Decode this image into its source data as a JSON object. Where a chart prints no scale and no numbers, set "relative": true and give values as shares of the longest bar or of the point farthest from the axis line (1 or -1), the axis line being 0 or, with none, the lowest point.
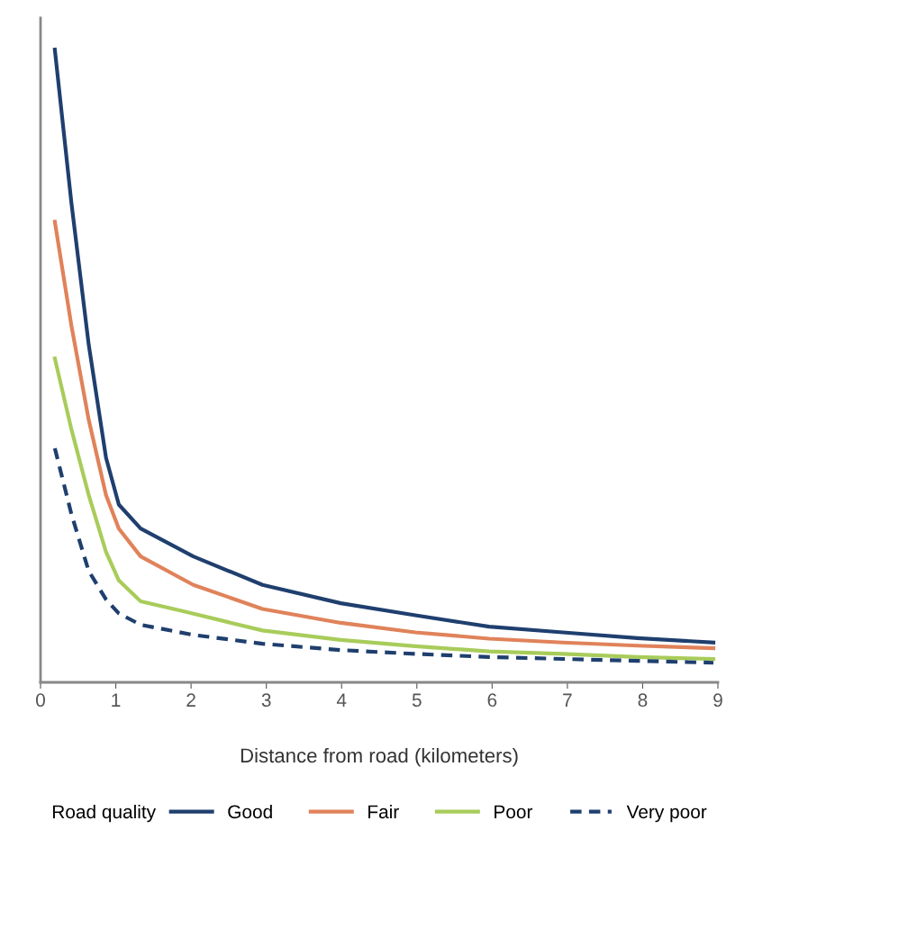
{
  "chart_data": {
    "type": "line",
    "relative": true,
    "xlabel": "Distance from road (kilometers)",
    "legend_title": "Road quality",
    "legend": "bottom",
    "grid": false,
    "xlim": [
      0,
      9
    ],
    "xticks": [
      0,
      1,
      2,
      3,
      4,
      5,
      6,
      7,
      8,
      9
    ],
    "series": [
      {
        "name": "Good",
        "color": "#1f3f6e",
        "line_style": "solid",
        "x": [
          0.19,
          0.41,
          0.64,
          0.87,
          1.04,
          1.33,
          2.03,
          2.95,
          3.99,
          4.98,
          5.96,
          6.94,
          7.93,
          8.94
        ],
        "values": [
          1.0,
          0.758,
          0.534,
          0.355,
          0.281,
          0.243,
          0.199,
          0.154,
          0.125,
          0.106,
          0.088,
          0.079,
          0.07,
          0.063
        ]
      },
      {
        "name": "Fair",
        "color": "#e0825a",
        "line_style": "solid",
        "x": [
          0.19,
          0.41,
          0.64,
          0.87,
          1.04,
          1.33,
          2.03,
          2.95,
          3.99,
          4.98,
          5.96,
          6.94,
          7.93,
          8.94
        ],
        "values": [
          0.728,
          0.564,
          0.415,
          0.296,
          0.243,
          0.199,
          0.154,
          0.116,
          0.094,
          0.079,
          0.069,
          0.063,
          0.058,
          0.054
        ]
      },
      {
        "name": "Poor",
        "color": "#a8cc5a",
        "line_style": "solid",
        "x": [
          0.19,
          0.41,
          0.64,
          0.87,
          1.04,
          1.33,
          1.91,
          2.95,
          3.99,
          4.98,
          5.96,
          6.94,
          7.93,
          8.94
        ],
        "values": [
          0.512,
          0.4,
          0.296,
          0.206,
          0.161,
          0.128,
          0.112,
          0.082,
          0.067,
          0.057,
          0.049,
          0.045,
          0.04,
          0.037
        ]
      },
      {
        "name": "Very poor",
        "color": "#1f3f6e",
        "line_style": "dashed",
        "x": [
          0.19,
          0.41,
          0.64,
          0.87,
          1.04,
          1.33,
          2.03,
          2.95,
          3.99,
          4.98,
          5.96,
          6.94,
          7.93,
          8.94
        ],
        "values": [
          0.37,
          0.266,
          0.176,
          0.131,
          0.109,
          0.091,
          0.075,
          0.061,
          0.051,
          0.045,
          0.04,
          0.037,
          0.034,
          0.031
        ]
      }
    ]
  }
}
